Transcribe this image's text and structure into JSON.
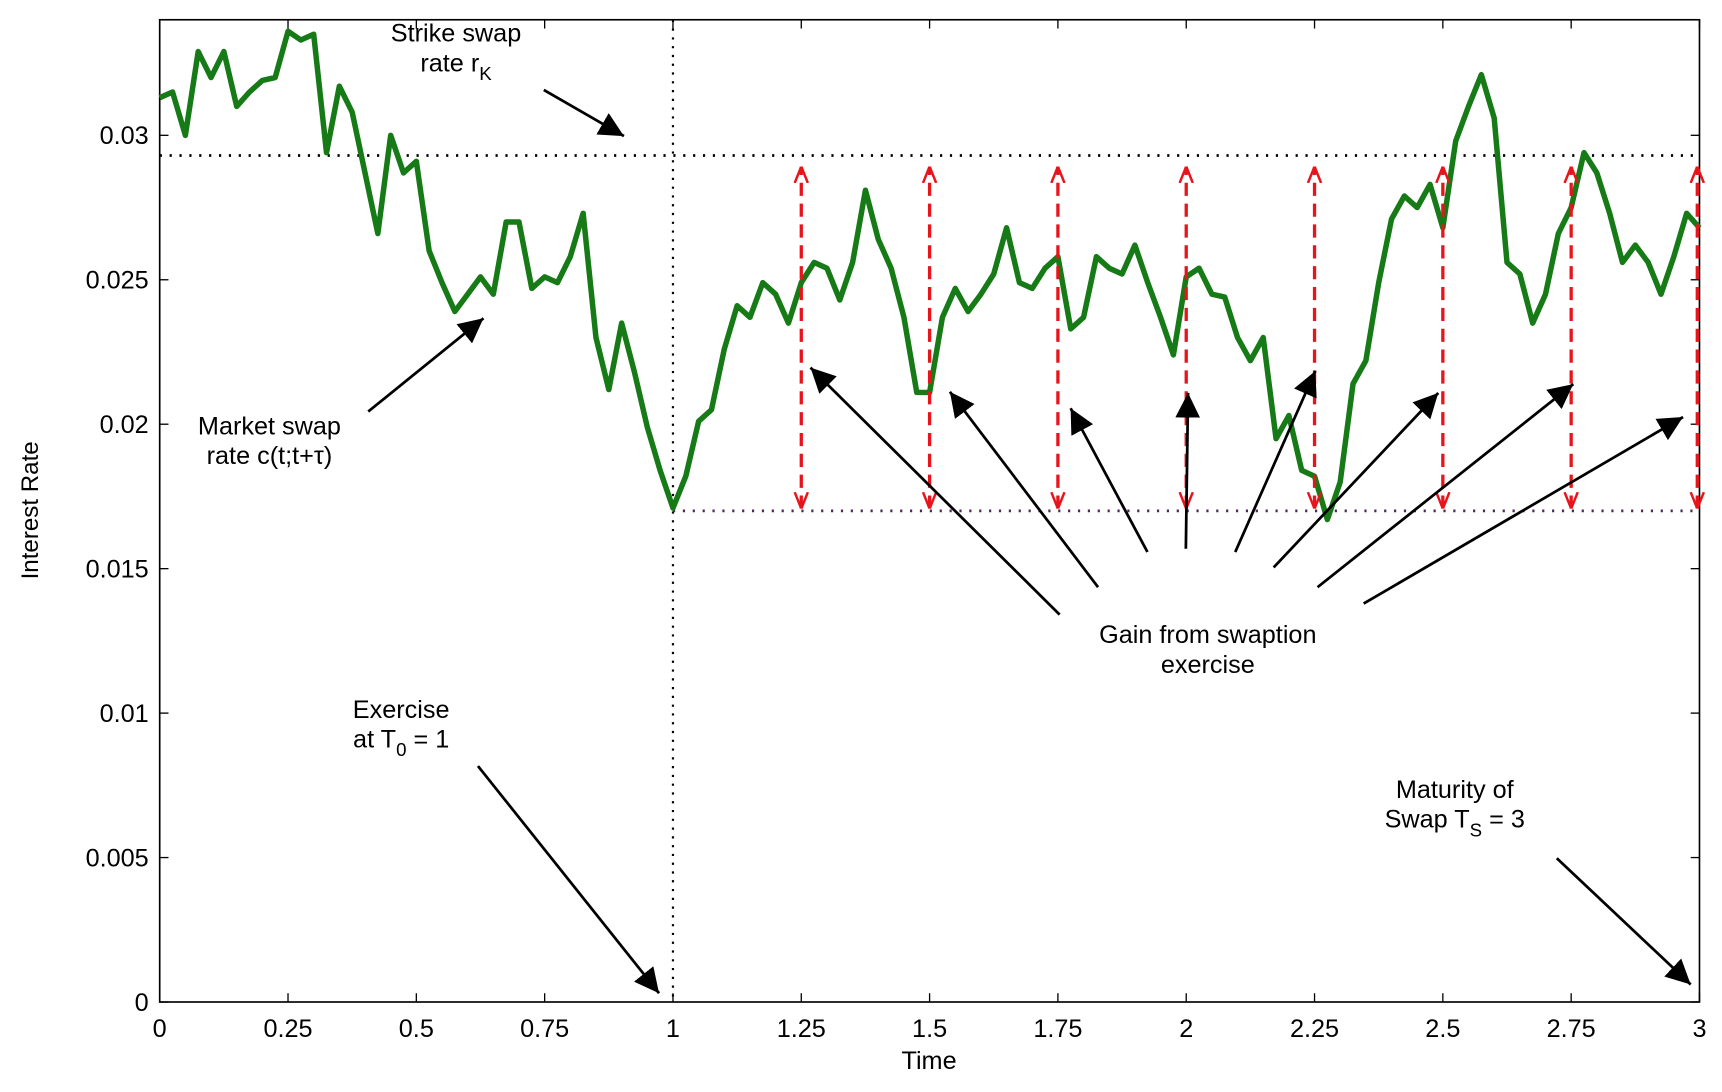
{
  "chart_data": {
    "type": "line",
    "xlabel": "Time",
    "ylabel": "Interest Rate",
    "xlim": [
      0,
      3
    ],
    "ylim": [
      0,
      0.034
    ],
    "xticks": [
      0,
      0.25,
      0.5,
      0.75,
      1,
      1.25,
      1.5,
      1.75,
      2,
      2.25,
      2.5,
      2.75,
      3
    ],
    "yticks": [
      0,
      0.005,
      0.01,
      0.015,
      0.02,
      0.025,
      0.03
    ],
    "series": [
      {
        "color": "#167a16",
        "x": [
          0,
          0.025,
          0.05,
          0.075,
          0.1,
          0.125,
          0.15,
          0.175,
          0.2,
          0.225,
          0.25,
          0.275,
          0.3,
          0.325,
          0.35,
          0.375,
          0.4,
          0.425,
          0.45,
          0.475,
          0.5,
          0.525,
          0.55,
          0.575,
          0.6,
          0.625,
          0.65,
          0.675,
          0.7,
          0.725,
          0.75,
          0.775,
          0.8,
          0.825,
          0.85,
          0.875,
          0.9,
          0.925,
          0.95,
          0.975,
          1,
          1.025,
          1.05,
          1.075,
          1.1,
          1.125,
          1.15,
          1.175,
          1.2,
          1.225,
          1.25,
          1.275,
          1.3,
          1.325,
          1.35,
          1.375,
          1.4,
          1.425,
          1.45,
          1.475,
          1.5,
          1.525,
          1.55,
          1.575,
          1.6,
          1.625,
          1.65,
          1.675,
          1.7,
          1.725,
          1.75,
          1.775,
          1.8,
          1.825,
          1.85,
          1.875,
          1.9,
          1.925,
          1.95,
          1.975,
          2,
          2.025,
          2.05,
          2.075,
          2.1,
          2.125,
          2.15,
          2.175,
          2.2,
          2.225,
          2.25,
          2.275,
          2.3,
          2.325,
          2.35,
          2.375,
          2.4,
          2.425,
          2.45,
          2.475,
          2.5,
          2.525,
          2.55,
          2.575,
          2.6,
          2.625,
          2.65,
          2.675,
          2.7,
          2.725,
          2.75,
          2.775,
          2.8,
          2.825,
          2.85,
          2.875,
          2.9,
          2.925,
          2.95,
          2.975,
          3
        ],
        "values": [
          0.0313,
          0.0315,
          0.03,
          0.0329,
          0.032,
          0.0329,
          0.031,
          0.0315,
          0.0319,
          0.032,
          0.0336,
          0.0333,
          0.0335,
          0.0294,
          0.0317,
          0.0308,
          0.0287,
          0.0266,
          0.03,
          0.0287,
          0.0291,
          0.026,
          0.0249,
          0.0239,
          0.0245,
          0.0251,
          0.0245,
          0.027,
          0.027,
          0.0247,
          0.0251,
          0.0249,
          0.0258,
          0.0273,
          0.023,
          0.0212,
          0.0235,
          0.0218,
          0.0199,
          0.0184,
          0.0171,
          0.0182,
          0.0201,
          0.0205,
          0.0226,
          0.0241,
          0.0237,
          0.0249,
          0.0245,
          0.0235,
          0.0249,
          0.0256,
          0.0254,
          0.0243,
          0.0256,
          0.0281,
          0.0264,
          0.0254,
          0.0237,
          0.0211,
          0.0211,
          0.0237,
          0.0247,
          0.0239,
          0.0245,
          0.0252,
          0.0268,
          0.0249,
          0.0247,
          0.0254,
          0.0258,
          0.0233,
          0.0237,
          0.0258,
          0.0254,
          0.0252,
          0.0262,
          0.0249,
          0.0237,
          0.0224,
          0.0251,
          0.0254,
          0.0245,
          0.0244,
          0.023,
          0.0222,
          0.023,
          0.0195,
          0.0203,
          0.0184,
          0.0182,
          0.0167,
          0.018,
          0.0214,
          0.0222,
          0.0249,
          0.0271,
          0.0279,
          0.0275,
          0.0283,
          0.0268,
          0.0298,
          0.031,
          0.0321,
          0.0306,
          0.0256,
          0.0252,
          0.0235,
          0.0245,
          0.0266,
          0.0275,
          0.0294,
          0.0287,
          0.0273,
          0.0256,
          0.0262,
          0.0256,
          0.0245,
          0.0258,
          0.0273,
          0.0268
        ]
      }
    ],
    "strike": 0.0293,
    "strike_color": "#000000",
    "floor": 0.017,
    "floor_color": "#4b2a5a",
    "exercise_time": 1,
    "gain_times": [
      1.25,
      1.5,
      1.75,
      2,
      2.25,
      2.5,
      2.75,
      3
    ],
    "gain_color": "#e8141b",
    "annotations": [
      {
        "lines": [
          [
            "Strike swap"
          ],
          [
            "rate r",
            "K"
          ]
        ]
      },
      {
        "lines": [
          [
            "Market swap"
          ],
          [
            "rate c(t;t+τ)"
          ]
        ]
      },
      {
        "lines": [
          [
            "Gain from swaption"
          ],
          [
            "exercise"
          ]
        ]
      },
      {
        "lines": [
          [
            "Exercise"
          ],
          [
            "at T",
            "0",
            " = 1"
          ]
        ]
      },
      {
        "lines": [
          [
            "Maturity of"
          ],
          [
            "Swap T",
            "S",
            " = 3"
          ]
        ]
      }
    ]
  }
}
